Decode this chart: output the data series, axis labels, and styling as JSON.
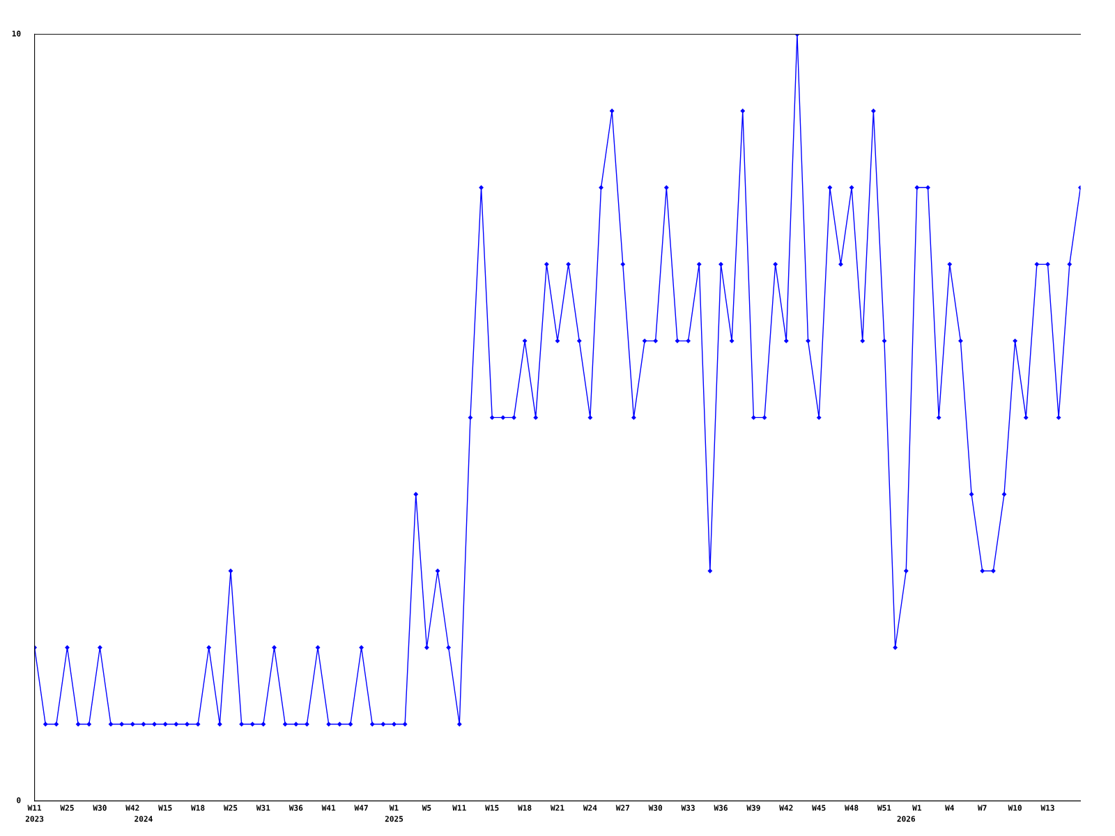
{
  "chart_data": {
    "type": "line",
    "categories": [
      "W11\n2023",
      null,
      null,
      "W25",
      null,
      null,
      "W30",
      null,
      null,
      "W42",
      "\n2024",
      null,
      "W15",
      null,
      null,
      "W18",
      null,
      null,
      "W25",
      null,
      null,
      "W31",
      null,
      null,
      "W36",
      null,
      null,
      "W41",
      null,
      null,
      "W47",
      null,
      null,
      "W1\n2025",
      null,
      null,
      "W5",
      null,
      null,
      "W11",
      null,
      null,
      "W15",
      null,
      null,
      "W18",
      null,
      null,
      "W21",
      null,
      null,
      "W24",
      null,
      null,
      "W27",
      null,
      null,
      "W30",
      null,
      null,
      "W33",
      null,
      null,
      "W36",
      null,
      null,
      "W39",
      null,
      null,
      "W42",
      null,
      null,
      "W45",
      null,
      null,
      "W48",
      null,
      null,
      "W51",
      null,
      "\n2026",
      "W1",
      null,
      null,
      "W4",
      null,
      null,
      "W7",
      null,
      null,
      "W10",
      null,
      null,
      "W13",
      null,
      null,
      null
    ],
    "series": [
      {
        "color": "#0000ff",
        "values": [
          2,
          1,
          1,
          2,
          1,
          1,
          2,
          1,
          1,
          1,
          1,
          1,
          1,
          1,
          1,
          1,
          2,
          1,
          3,
          1,
          1,
          1,
          2,
          1,
          1,
          1,
          2,
          1,
          1,
          1,
          2,
          1,
          1,
          1,
          1,
          4,
          2,
          3,
          2,
          1,
          5,
          8,
          5,
          5,
          5,
          6,
          5,
          7,
          6,
          7,
          6,
          5,
          8,
          9,
          7,
          5,
          6,
          6,
          8,
          6,
          6,
          7,
          3,
          7,
          6,
          9,
          5,
          5,
          7,
          6,
          10,
          6,
          5,
          8,
          7,
          8,
          6,
          9,
          6,
          2,
          3,
          8,
          8,
          5,
          7,
          6,
          4,
          3,
          3,
          4,
          6,
          5,
          7,
          7,
          5,
          7,
          8
        ]
      }
    ],
    "ylim": [
      0,
      10
    ],
    "yticks": [
      0,
      10
    ],
    "grid": false,
    "legend": false,
    "marker": "diamond",
    "line_style": "solid"
  }
}
